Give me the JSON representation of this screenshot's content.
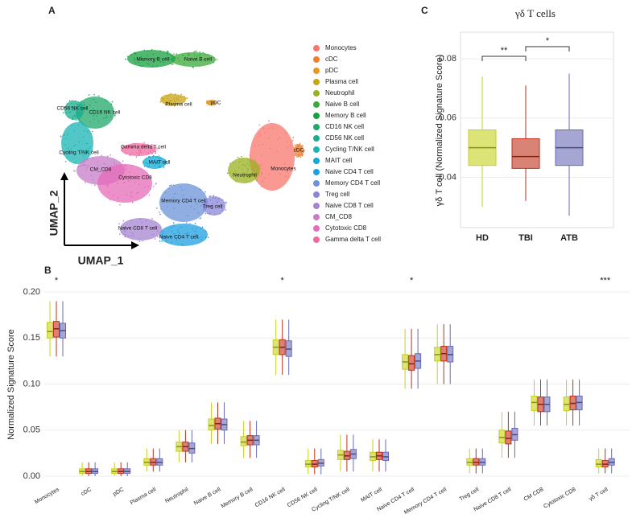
{
  "panel_labels": {
    "a": "A",
    "b": "B",
    "c": "C"
  },
  "umap": {
    "x_label": "UMAP_1",
    "y_label": "UMAP_2",
    "legend": [
      {
        "name": "Monocytes",
        "color": "#f8766d"
      },
      {
        "name": "cDC",
        "color": "#ee8030"
      },
      {
        "name": "pDC",
        "color": "#e69820"
      },
      {
        "name": "Plasma cell",
        "color": "#c9a413"
      },
      {
        "name": "Neutrophil",
        "color": "#9ab020"
      },
      {
        "name": "Naive B cell",
        "color": "#3aaa3a"
      },
      {
        "name": "Memory B cell",
        "color": "#18a040"
      },
      {
        "name": "CD16 NK cell",
        "color": "#20a86a"
      },
      {
        "name": "CD56 NK cell",
        "color": "#1aad8f"
      },
      {
        "name": "Cycling T/NK cell",
        "color": "#19b4b4"
      },
      {
        "name": "MAIT cell",
        "color": "#12a9d6"
      },
      {
        "name": "Naive CD4 T cell",
        "color": "#1e9fe0"
      },
      {
        "name": "Memory CD4 T cell",
        "color": "#6c93d8"
      },
      {
        "name": "Treg cell",
        "color": "#8c85d8"
      },
      {
        "name": "Naive CD8 T cell",
        "color": "#a684d0"
      },
      {
        "name": "CM_CD8",
        "color": "#c77cc8"
      },
      {
        "name": "Cytotoxic CD8",
        "color": "#e66bb8"
      },
      {
        "name": "Gamma delta T cell",
        "color": "#ef6aa0"
      }
    ],
    "cluster_labels": [
      "Monocytes",
      "cDC",
      "pDC",
      "Plasma cell",
      "Neutrophil",
      "Naive B cell",
      "Memory B cell",
      "CD16 NK cell",
      "CD56 NK cell",
      "Cycling T/NK cell",
      "MAIT cell",
      "Naive CD4 T cell",
      "Memory CD4 T cell",
      "Treg cell",
      "Naive CD8 T cell",
      "CM_CD8",
      "Cytotoxic CD8",
      "Gamma delta T cell"
    ]
  },
  "chart_data": [
    {
      "type": "box",
      "y_label": "Normalized Signature Score",
      "categories": [
        "Monocytes",
        "cDC",
        "pDC",
        "Plasma cell",
        "Neutrophil",
        "Naive B cell",
        "Memory B cell",
        "CD16 NK cell",
        "CD56 NK cell",
        "Cycling T/NK cell",
        "MAIT cell",
        "Naive CD4 T cell",
        "Memory CD4 T cell",
        "Treg cell",
        "Naive CD8 T cell",
        "CM CD8",
        "Cytotoxic CD8",
        "γδ T cell"
      ],
      "ylim": [
        -0.007,
        0.207
      ],
      "yticks": [
        {
          "value": 0,
          "label": "0.00"
        },
        0.05,
        {
          "value": 0.1,
          "label": "0.10"
        },
        0.15,
        {
          "value": 0.2,
          "label": "0.20"
        }
      ],
      "series": [
        {
          "color": "#c5d11c",
          "median": [
            0.157,
            0.005,
            0.005,
            0.015,
            0.032,
            0.055,
            0.037,
            0.14,
            0.013,
            0.023,
            0.021,
            0.124,
            0.132,
            0.015,
            0.042,
            0.08,
            0.078,
            0.013
          ],
          "q1": [
            0.15,
            0.003,
            0.003,
            0.012,
            0.027,
            0.05,
            0.033,
            0.132,
            0.01,
            0.018,
            0.017,
            0.116,
            0.125,
            0.012,
            0.036,
            0.071,
            0.071,
            0.01
          ],
          "q3": [
            0.167,
            0.008,
            0.008,
            0.019,
            0.037,
            0.062,
            0.043,
            0.148,
            0.017,
            0.028,
            0.026,
            0.132,
            0.14,
            0.019,
            0.05,
            0.087,
            0.086,
            0.018
          ],
          "low": [
            0.13,
            0.0,
            0.0,
            0.005,
            0.015,
            0.035,
            0.02,
            0.11,
            0.002,
            0.005,
            0.005,
            0.095,
            0.1,
            0.003,
            0.02,
            0.055,
            0.055,
            0.003
          ],
          "high": [
            0.19,
            0.015,
            0.015,
            0.03,
            0.05,
            0.08,
            0.06,
            0.17,
            0.03,
            0.045,
            0.04,
            0.16,
            0.165,
            0.03,
            0.07,
            0.105,
            0.105,
            0.03
          ]
        },
        {
          "color": "#c0301a",
          "median": [
            0.16,
            0.005,
            0.005,
            0.015,
            0.032,
            0.057,
            0.039,
            0.14,
            0.013,
            0.022,
            0.022,
            0.122,
            0.133,
            0.015,
            0.041,
            0.078,
            0.079,
            0.013
          ],
          "q1": [
            0.151,
            0.003,
            0.003,
            0.012,
            0.027,
            0.051,
            0.034,
            0.132,
            0.01,
            0.018,
            0.018,
            0.115,
            0.125,
            0.012,
            0.035,
            0.07,
            0.072,
            0.01
          ],
          "q3": [
            0.168,
            0.008,
            0.008,
            0.019,
            0.037,
            0.063,
            0.044,
            0.148,
            0.017,
            0.027,
            0.026,
            0.131,
            0.141,
            0.019,
            0.049,
            0.086,
            0.087,
            0.017
          ],
          "low": [
            0.13,
            0.0,
            0.0,
            0.005,
            0.015,
            0.035,
            0.02,
            0.11,
            0.002,
            0.005,
            0.005,
            0.095,
            0.1,
            0.003,
            0.02,
            0.055,
            0.055,
            0.003
          ],
          "high": [
            0.19,
            0.015,
            0.015,
            0.03,
            0.05,
            0.08,
            0.06,
            0.17,
            0.03,
            0.045,
            0.04,
            0.16,
            0.165,
            0.03,
            0.07,
            0.105,
            0.105,
            0.03
          ]
        },
        {
          "color": "#6a6ab8",
          "median": [
            0.158,
            0.005,
            0.005,
            0.015,
            0.03,
            0.056,
            0.039,
            0.138,
            0.014,
            0.024,
            0.021,
            0.125,
            0.132,
            0.015,
            0.045,
            0.078,
            0.08,
            0.015
          ],
          "q1": [
            0.15,
            0.003,
            0.003,
            0.012,
            0.025,
            0.05,
            0.034,
            0.13,
            0.011,
            0.019,
            0.017,
            0.117,
            0.124,
            0.012,
            0.039,
            0.07,
            0.072,
            0.012
          ],
          "q3": [
            0.166,
            0.008,
            0.008,
            0.019,
            0.036,
            0.062,
            0.044,
            0.147,
            0.018,
            0.029,
            0.026,
            0.133,
            0.141,
            0.019,
            0.052,
            0.086,
            0.087,
            0.019
          ],
          "low": [
            0.13,
            0.0,
            0.0,
            0.005,
            0.015,
            0.035,
            0.02,
            0.11,
            0.002,
            0.005,
            0.005,
            0.095,
            0.1,
            0.003,
            0.02,
            0.055,
            0.055,
            0.003
          ],
          "high": [
            0.19,
            0.015,
            0.015,
            0.03,
            0.05,
            0.08,
            0.06,
            0.17,
            0.03,
            0.045,
            0.04,
            0.16,
            0.165,
            0.03,
            0.07,
            0.105,
            0.105,
            0.03
          ]
        }
      ],
      "annotations": [
        {
          "category": "Monocytes",
          "label": "*"
        },
        {
          "category": "CD16 NK cell",
          "label": "*"
        },
        {
          "category": "Naive CD4 T cell",
          "label": "*"
        },
        {
          "category": "γδ T cell",
          "label": "***"
        }
      ]
    },
    {
      "type": "box",
      "title": "γδ T cells",
      "y_label": "γδ T cell (Normalized Signature Score)",
      "categories": [
        "HD",
        "TBI",
        "ATB"
      ],
      "colors": [
        "#c5d11c",
        "#c0301a",
        "#6a6ab8"
      ],
      "median": [
        0.05,
        0.047,
        0.05
      ],
      "q1": [
        0.044,
        0.043,
        0.044
      ],
      "q3": [
        0.056,
        0.053,
        0.056
      ],
      "low": [
        0.03,
        0.032,
        0.027
      ],
      "high": [
        0.074,
        0.071,
        0.075
      ],
      "ylim": [
        0.023,
        0.089
      ],
      "yticks": [
        0.04,
        0.06,
        0.08
      ],
      "comparisons": [
        {
          "groups": [
            "HD",
            "TBI"
          ],
          "label": "**"
        },
        {
          "groups": [
            "TBI",
            "ATB"
          ],
          "label": "*"
        }
      ]
    }
  ]
}
